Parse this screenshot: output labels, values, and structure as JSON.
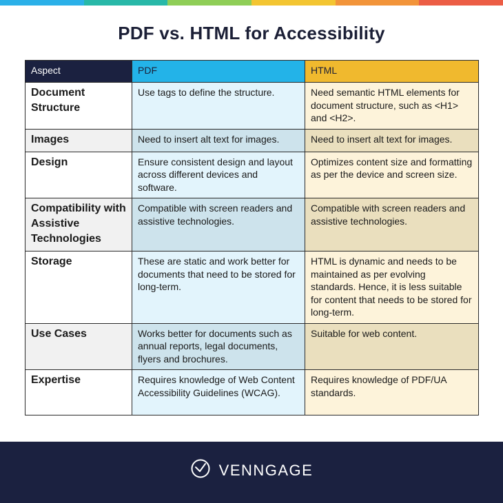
{
  "top_bar_colors": [
    "#2bb0e8",
    "#28b8a8",
    "#8fce57",
    "#f3c532",
    "#f2943a",
    "#ec5d45"
  ],
  "title": "PDF vs. HTML for Accessibility",
  "table": {
    "headers": [
      "Aspect",
      "PDF",
      "HTML"
    ],
    "rows": [
      {
        "aspect": "Document Structure",
        "pdf": "Use tags to define the structure.",
        "html": "Need semantic HTML elements for document structure, such as <H1> and <H2>."
      },
      {
        "aspect": "Images",
        "pdf": "Need to insert alt text for images.",
        "html": "Need to insert alt text for images."
      },
      {
        "aspect": "Design",
        "pdf": "Ensure consistent design and layout across different devices and software.",
        "html": "Optimizes content size and formatting as per the device and screen size."
      },
      {
        "aspect": "Compatibility with Assistive Technologies",
        "pdf": "Compatible with screen readers and assistive technologies.",
        "html": "Compatible with screen readers and assistive technologies."
      },
      {
        "aspect": "Storage",
        "pdf": "These are static and work better for documents that need to be stored for long-term.",
        "html": "HTML is dynamic and needs to be maintained as per evolving standards. Hence, it is less suitable for content that needs to be stored for long-term."
      },
      {
        "aspect": "Use Cases",
        "pdf": "Works better for documents such as annual reports, legal documents, flyers and brochures.",
        "html": "Suitable for web content."
      },
      {
        "aspect": "Expertise",
        "pdf": "Requires knowledge of Web Content Accessibility Guidelines (WCAG).",
        "html": "Requires knowledge of PDF/UA standards."
      }
    ]
  },
  "footer": {
    "brand": "VENNGAGE",
    "logo_icon": "venngage-logo-icon",
    "background": "#1b2140"
  }
}
